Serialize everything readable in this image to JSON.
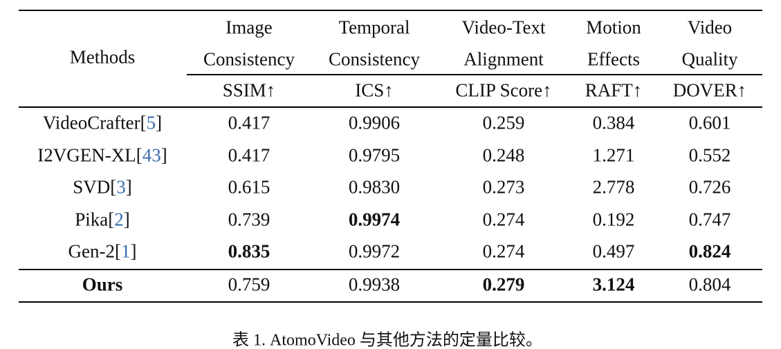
{
  "header": {
    "method_label": "Methods",
    "columns": [
      {
        "lines": [
          "Image",
          "Consistency"
        ],
        "metric": "SSIM↑"
      },
      {
        "lines": [
          "Temporal",
          "Consistency"
        ],
        "metric": "ICS↑"
      },
      {
        "lines": [
          "Video-Text",
          "Alignment"
        ],
        "metric": "CLIP Score↑"
      },
      {
        "lines": [
          "Motion",
          "Effects"
        ],
        "metric": "RAFT↑"
      },
      {
        "lines": [
          "Video",
          "Quality"
        ],
        "metric": "DOVER↑"
      }
    ]
  },
  "rows": [
    {
      "name": "VideoCrafter",
      "ref": [
        "[",
        "5",
        "]"
      ],
      "cells": [
        "0.417",
        "0.9906",
        "0.259",
        "0.384",
        "0.601"
      ]
    },
    {
      "name": "I2VGEN-XL",
      "ref": [
        "[",
        "43",
        "]"
      ],
      "cells": [
        "0.417",
        "0.9795",
        "0.248",
        "1.271",
        "0.552"
      ]
    },
    {
      "name": "SVD",
      "ref": [
        "[",
        "3",
        "]"
      ],
      "cells": [
        "0.615",
        "0.9830",
        "0.273",
        "2.778",
        "0.726"
      ]
    },
    {
      "name": "Pika",
      "ref": [
        "[",
        "2",
        "]"
      ],
      "cells": [
        "0.739",
        "0.9974",
        "0.274",
        "0.192",
        "0.747"
      ],
      "bold": [
        1
      ]
    },
    {
      "name": "Gen-2",
      "ref": [
        "[",
        "1",
        "]"
      ],
      "cells": [
        "0.835",
        "0.9972",
        "0.274",
        "0.497",
        "0.824"
      ],
      "bold": [
        0,
        4
      ]
    }
  ],
  "final": {
    "name": "Ours",
    "cells": [
      "0.759",
      "0.9938",
      "0.279",
      "3.124",
      "0.804"
    ],
    "bold": [
      2,
      3
    ]
  },
  "caption": "表 1. AtomoVideo 与其他方法的定量比较。"
}
